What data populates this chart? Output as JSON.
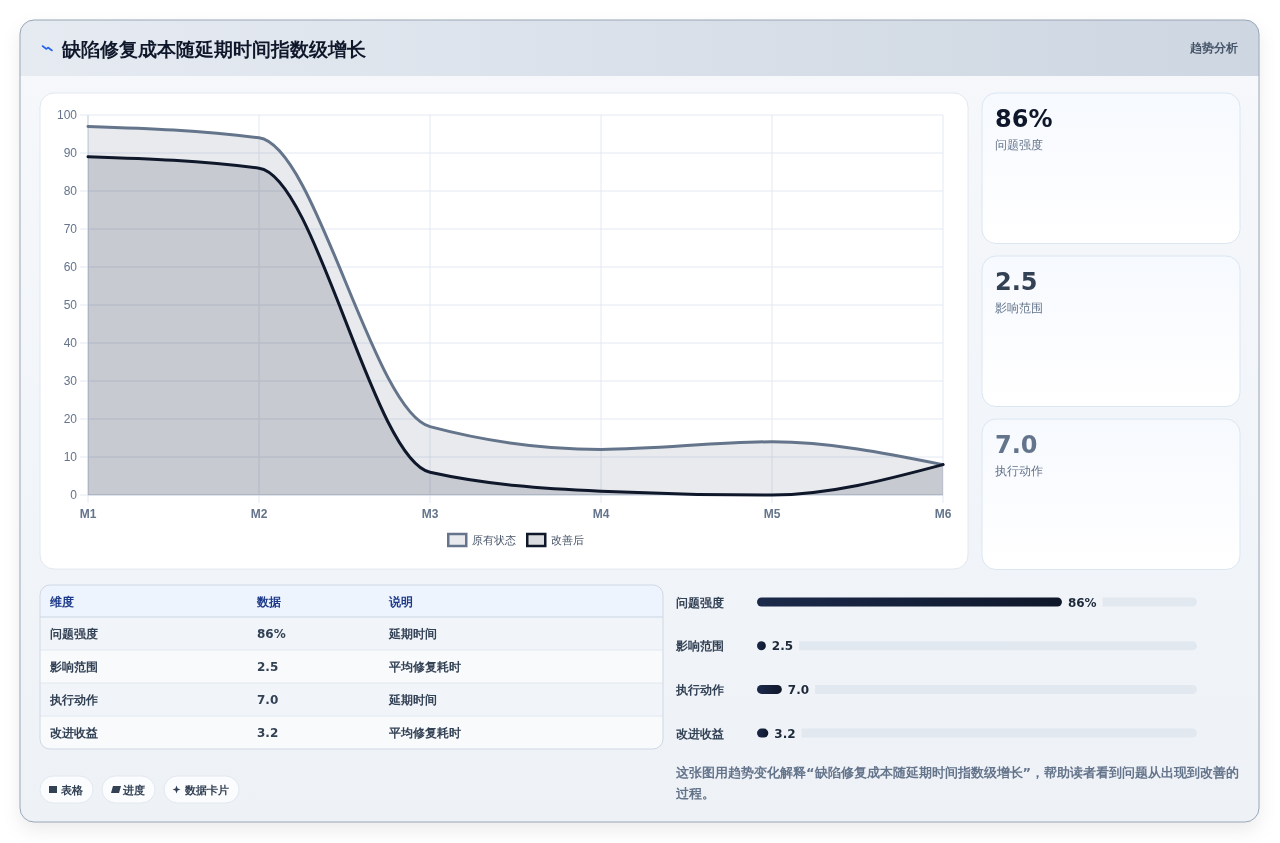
{
  "chart_data": [
    {
      "type": "area",
      "title": "缺陷修复成本随延期时间指数级增长",
      "categories": [
        "M1",
        "M2",
        "M3",
        "M4",
        "M5",
        "M6"
      ],
      "series": [
        {
          "name": "原有状态",
          "color": "#64748b",
          "values": [
            97,
            94,
            18,
            12,
            14,
            8
          ]
        },
        {
          "name": "改善后",
          "color": "#0f172a",
          "values": [
            89,
            86,
            6,
            1,
            0,
            8
          ]
        }
      ],
      "ylim": [
        0,
        100
      ],
      "yticks": [
        0,
        10,
        20,
        30,
        40,
        50,
        60,
        70,
        80,
        90,
        100
      ],
      "grid": true,
      "legend": "bottom"
    },
    {
      "type": "other",
      "title": "趋势分析",
      "categories": [
        "问题强度",
        "影响范围",
        "执行动作"
      ],
      "value_labels": [
        "86%",
        "2.5",
        "7.0"
      ]
    },
    {
      "type": "other",
      "categories": [
        "维度",
        "数据",
        "说明"
      ],
      "y_categories": [
        "问题强度",
        "影响范围",
        "执行动作",
        "改进收益"
      ],
      "cell_labels": [
        [
          "86%",
          "延期时间"
        ],
        [
          "2.5",
          "平均修复耗时"
        ],
        [
          "7.0",
          "延期时间"
        ],
        [
          "3.2",
          "平均修复耗时"
        ]
      ],
      "annotations": [
        "表格",
        "进度",
        "数据卡片"
      ]
    },
    {
      "type": "bar",
      "orientation": "horizontal",
      "categories": [
        "问题强度",
        "影响范围",
        "执行动作",
        "改进收益"
      ],
      "values": [
        86,
        2.5,
        7.0,
        3.2
      ],
      "value_labels": [
        "86%",
        "2.5",
        "7.0",
        "3.2"
      ],
      "color": "#0f172a",
      "annotations": [
        "这张图用趋势变化解释“缺陷修复成本随延期时间指数级增长”，帮助读者看到问题从出现到改善的过程。"
      ]
    }
  ]
}
